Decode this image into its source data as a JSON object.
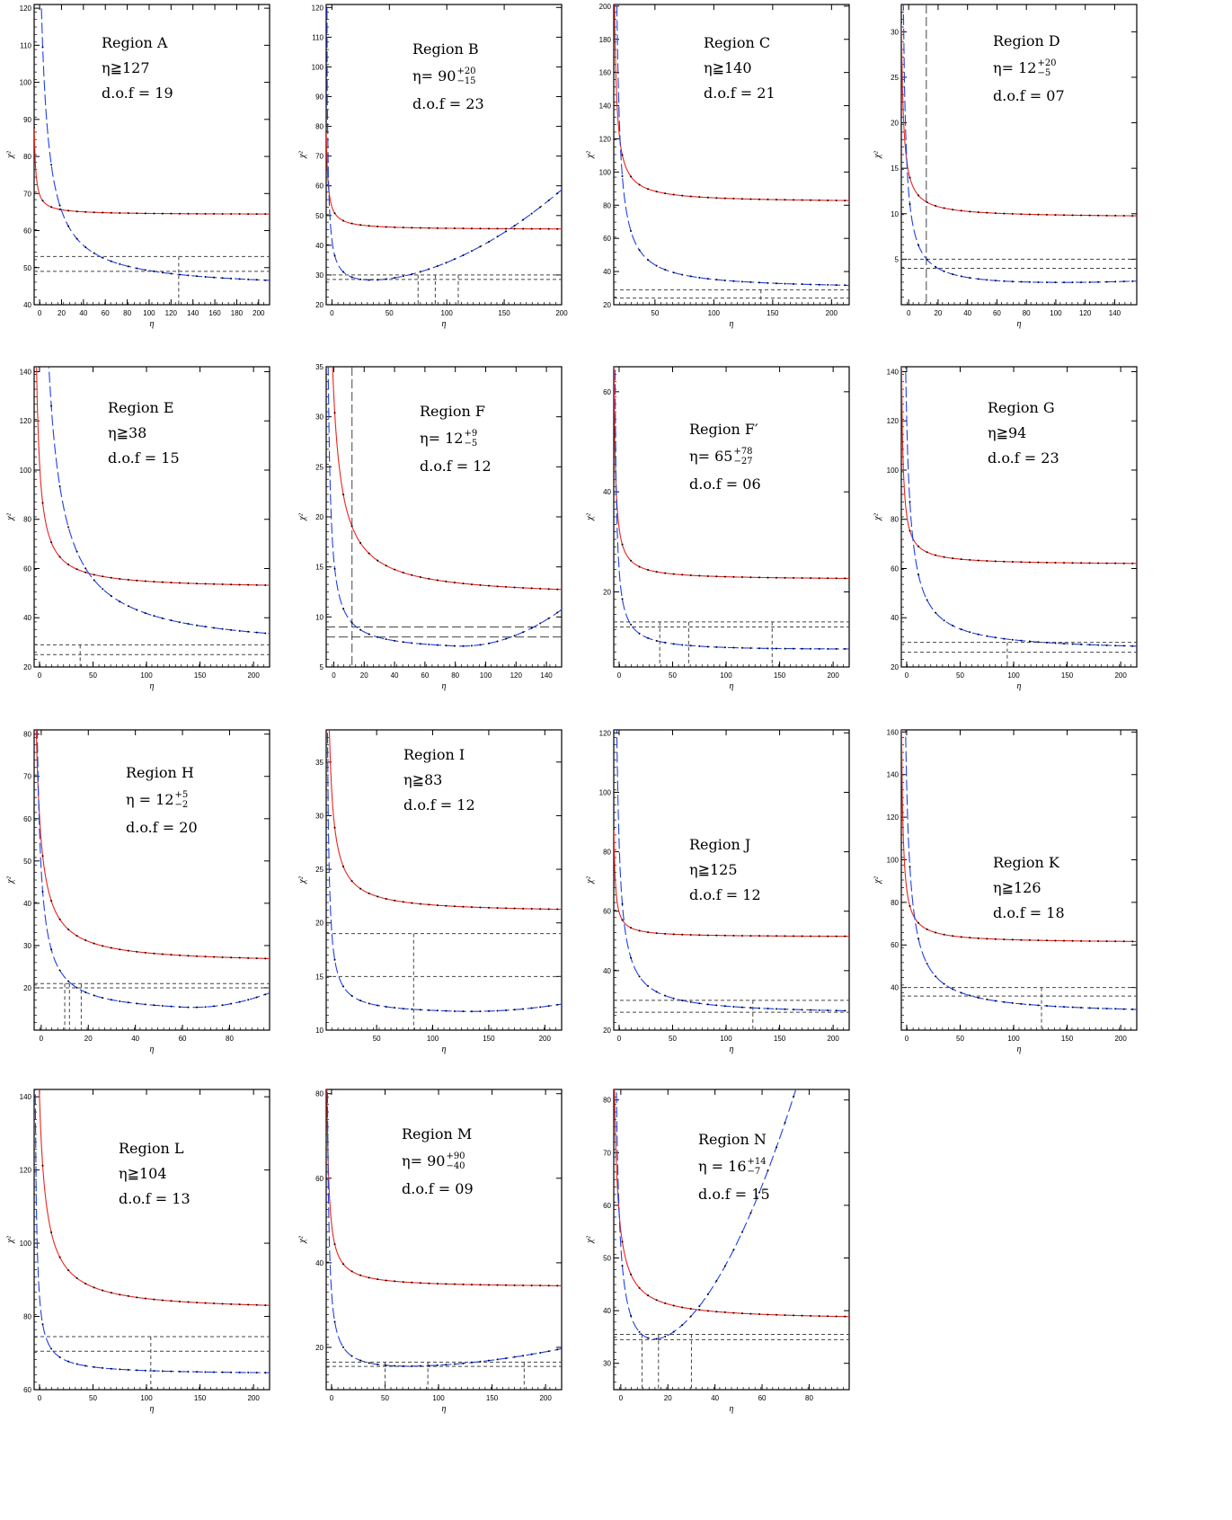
{
  "colors": {
    "red_curve": "#e8251f",
    "blue_curve": "#1f3fe8",
    "reference": "#444444",
    "axes": "#000000"
  },
  "axis_labels": {
    "x": "η",
    "y": "χ²"
  },
  "chart_data": [
    {
      "type": "line",
      "title": "Region A",
      "eta_text": "η≧127",
      "dof_text": "d.o.f  =  19",
      "xlim": [
        -5,
        210
      ],
      "ylim": [
        40,
        121
      ],
      "xticks": [
        0,
        20,
        40,
        60,
        80,
        100,
        120,
        140,
        160,
        180,
        200
      ],
      "yticks": [
        40,
        50,
        60,
        70,
        80,
        90,
        100,
        110,
        120
      ],
      "red": {
        "a": 21,
        "b": 11,
        "c": 0.62,
        "s": 0.7
      },
      "blue": {
        "a": 10,
        "b": 16,
        "c": 0.8,
        "s": 8.4
      },
      "hlines": [
        53,
        49
      ],
      "vlines": [
        127
      ]
    },
    {
      "type": "line",
      "title": "Region B",
      "eta_text": "η=  90",
      "eta_sup": "+20",
      "eta_sub": "−15",
      "dof_text": "d.o.f  =  23",
      "xlim": [
        -5,
        200
      ],
      "ylim": [
        20,
        121
      ],
      "xticks": [
        0,
        50,
        100,
        150,
        200
      ],
      "yticks": [
        20,
        30,
        40,
        50,
        60,
        70,
        80,
        90,
        100,
        110,
        120
      ],
      "red": {
        "a": 5,
        "b": 6,
        "c": 0.35,
        "s": 1.4
      },
      "blue": {
        "a": 5,
        "b": 3,
        "c": 0.9,
        "s": 1.0,
        "p": 22,
        "q": 0.00083,
        "x0": 0
      },
      "hlines": [
        30,
        28.5
      ],
      "vlines": [
        75,
        90,
        110
      ]
    },
    {
      "type": "line",
      "title": "Region C",
      "eta_text": "η≧140",
      "dof_text": "d.o.f  =  21",
      "xlim": [
        15,
        215
      ],
      "ylim": [
        20,
        201
      ],
      "xticks": [
        50,
        100,
        150,
        200
      ],
      "yticks": [
        20,
        40,
        60,
        80,
        100,
        120,
        140,
        160,
        180,
        200
      ],
      "red": {
        "a": 5,
        "b": 15,
        "c": 0.45,
        "s": 3.1
      },
      "blue": {
        "a": 5,
        "b": 18,
        "c": 1.05,
        "s": 2.8
      },
      "hlines": [
        29,
        24
      ],
      "vlines": [
        140
      ]
    },
    {
      "type": "line",
      "title": "Region D",
      "eta_text": "η=  12",
      "eta_sup": "+20",
      "eta_sub": "−5",
      "dof_text": "d.o.f  =  07",
      "xlim": [
        -5,
        155
      ],
      "ylim": [
        0,
        33
      ],
      "xticks": [
        0,
        20,
        40,
        60,
        80,
        100,
        120,
        140
      ],
      "yticks": [
        5,
        10,
        15,
        20,
        25,
        30
      ],
      "red": {
        "a": 5,
        "b": 10,
        "c": 0.65,
        "s": 1.5
      },
      "blue": {
        "a": 5,
        "b": 3,
        "c": 1.8,
        "s": 1.0,
        "p": 0,
        "q": 2.4e-05,
        "x0": 0
      },
      "hlines": [
        5,
        4
      ],
      "vlines": [
        12
      ],
      "vdash": "long"
    },
    {
      "type": "line",
      "title": "Region E",
      "eta_text": "η≧38",
      "dof_text": "d.o.f  =  15",
      "xlim": [
        -5,
        215
      ],
      "ylim": [
        20,
        142
      ],
      "xticks": [
        0,
        50,
        100,
        150,
        200
      ],
      "yticks": [
        20,
        40,
        60,
        80,
        100,
        120,
        140
      ],
      "red": {
        "a": 5,
        "b": 7,
        "c": 0.85,
        "s": 3.2
      },
      "blue": {
        "a": 5,
        "b": 5,
        "c": 2.6,
        "s": 5.2
      },
      "hlines": [
        29,
        25
      ],
      "vlines": [
        38
      ]
    },
    {
      "type": "line",
      "title": "Region F",
      "eta_text": "η=  12",
      "eta_sup": "+9",
      "eta_sub": "−5",
      "dof_text": "d.o.f  =  12",
      "xlim": [
        -5,
        150
      ],
      "ylim": [
        5,
        35
      ],
      "xticks": [
        0,
        20,
        40,
        60,
        80,
        100,
        120,
        140
      ],
      "yticks": [
        5,
        10,
        15,
        20,
        25,
        30,
        35
      ],
      "red": {
        "a": 5,
        "b": 4,
        "c": 1.0,
        "s": 4.4
      },
      "blue": {
        "a": 5,
        "b": 3,
        "c": 1.7,
        "s": 1.0,
        "p": -0.5,
        "q": 0.17,
        "x0": 80
      },
      "hlines": [
        9,
        8
      ],
      "vlines": [
        12
      ],
      "vdash": "long",
      "hdash": "long"
    },
    {
      "type": "line",
      "title": "Region F′",
      "eta_text": "η=  65",
      "eta_sup": "+78",
      "eta_sub": "−27",
      "dof_text": "d.o.f  =  06",
      "xlim": [
        -5,
        215
      ],
      "ylim": [
        5,
        65
      ],
      "xticks": [
        0,
        50,
        100,
        150,
        200
      ],
      "yticks": [
        20,
        40,
        60
      ],
      "red": {
        "a": 5,
        "b": 10,
        "c": 0.8,
        "s": 1.4
      },
      "blue": {
        "a": 5,
        "b": 3,
        "c": 1.5,
        "s": 1.0,
        "p": 0,
        "q": 4.5e-06,
        "x0": 0
      },
      "hlines": [
        14,
        13
      ],
      "vlines": [
        38,
        65,
        143
      ]
    },
    {
      "type": "line",
      "title": "Region G",
      "eta_text": "η≧94",
      "dof_text": "d.o.f  =  23",
      "xlim": [
        -5,
        215
      ],
      "ylim": [
        20,
        142
      ],
      "xticks": [
        0,
        50,
        100,
        150,
        200
      ],
      "yticks": [
        20,
        40,
        60,
        80,
        100,
        120,
        140
      ],
      "red": {
        "a": 5,
        "b": 15,
        "c": 0.45,
        "s": 2.4
      },
      "blue": {
        "a": 5,
        "b": 15,
        "c": 1.25,
        "s": 3.4
      },
      "hlines": [
        30,
        26
      ],
      "vlines": [
        94
      ]
    },
    {
      "type": "line",
      "title": "Region H",
      "eta_text": "η  =  12",
      "eta_sup": "+5",
      "eta_sub": "−2",
      "dof_text": "d.o.f  =  20",
      "xlim": [
        -3,
        97
      ],
      "ylim": [
        10,
        81
      ],
      "xticks": [
        0,
        20,
        40,
        60,
        80
      ],
      "yticks": [
        20,
        30,
        40,
        50,
        60,
        70,
        80
      ],
      "red": {
        "a": 5,
        "b": 3,
        "c": 1.0,
        "s": 1.85
      },
      "blue": {
        "a": 5,
        "b": 3,
        "c": 1.7,
        "s": 1.0,
        "p": -0.3,
        "q": 0.15,
        "x0": 60
      },
      "hlines": [
        21,
        20
      ],
      "vlines": [
        10,
        12,
        17
      ]
    },
    {
      "type": "line",
      "title": "Region I",
      "eta_text": "η≧83",
      "dof_text": "d.o.f  =  12",
      "xlim": [
        5,
        215
      ],
      "ylim": [
        10,
        38
      ],
      "xticks": [
        50,
        100,
        150,
        200
      ],
      "yticks": [
        10,
        15,
        20,
        25,
        30,
        35
      ],
      "red": {
        "a": 5,
        "b": 20,
        "c": 0.65,
        "s": 4.0
      },
      "blue": {
        "a": 5,
        "b": 3,
        "c": 1.5,
        "s": 1.0,
        "p": -0.5,
        "q": 0.047,
        "x0": 120
      },
      "hlines": [
        19,
        15
      ],
      "vlines": [
        83
      ]
    },
    {
      "type": "line",
      "title": "Region J",
      "eta_text": "η≧125",
      "dof_text": "d.o.f  =  12",
      "xlim": [
        -5,
        215
      ],
      "ylim": [
        20,
        121
      ],
      "xticks": [
        0,
        50,
        100,
        150,
        200
      ],
      "yticks": [
        20,
        40,
        60,
        80,
        100,
        120
      ],
      "red": {
        "a": 5,
        "b": 12,
        "c": 0.45,
        "s": 1.2
      },
      "blue": {
        "a": 5,
        "b": 15,
        "c": 0.85,
        "s": 3.7
      },
      "hlines": [
        30,
        26
      ],
      "vlines": [
        125
      ]
    },
    {
      "type": "line",
      "title": "Region K",
      "eta_text": "η≧126",
      "dof_text": "d.o.f  =  18",
      "xlim": [
        -5,
        215
      ],
      "ylim": [
        20,
        161
      ],
      "xticks": [
        0,
        50,
        100,
        150,
        200
      ],
      "yticks": [
        40,
        60,
        80,
        100,
        120,
        140,
        160
      ],
      "red": {
        "a": 5,
        "b": 10,
        "c": 0.45,
        "s": 2.6
      },
      "blue": {
        "a": 5,
        "b": 12,
        "c": 1.0,
        "s": 4.2
      },
      "hlines": [
        40,
        36
      ],
      "vlines": [
        126
      ]
    },
    {
      "type": "line",
      "title": "Region L",
      "eta_text": "η≧104",
      "dof_text": "d.o.f  =  13",
      "xlim": [
        -5,
        215
      ],
      "ylim": [
        60,
        142
      ],
      "xticks": [
        0,
        50,
        100,
        150,
        200
      ],
      "yticks": [
        60,
        80,
        100,
        120,
        140
      ],
      "red": {
        "a": 5,
        "b": 7,
        "c": 1.4,
        "s": 3.3
      },
      "blue": {
        "a": 5,
        "b": 7,
        "c": 0.75,
        "s": 1.9
      },
      "hlines": [
        74.5,
        70.5
      ],
      "vlines": [
        104
      ]
    },
    {
      "type": "line",
      "title": "Region M",
      "eta_text": "η=  90",
      "eta_sup": "+90",
      "eta_sub": "−40",
      "dof_text": "d.o.f  =  09",
      "xlim": [
        -5,
        215
      ],
      "ylim": [
        10,
        81
      ],
      "xticks": [
        0,
        50,
        100,
        150,
        200
      ],
      "yticks": [
        20,
        40,
        60,
        80
      ],
      "red": {
        "a": 5,
        "b": 15,
        "c": 0.55,
        "s": 2.5
      },
      "blue": {
        "a": 5,
        "b": 3,
        "c": 1.5,
        "s": 1.0,
        "p": 0,
        "q": 0.000122,
        "x0": 0
      },
      "hlines": [
        16.5,
        15.5
      ],
      "vlines": [
        50,
        90,
        180
      ]
    },
    {
      "type": "line",
      "title": "Region N",
      "eta_text": "η  =  16",
      "eta_sup": "+14",
      "eta_sub": "−7",
      "dof_text": "d.o.f  =  15",
      "xlim": [
        -3,
        97
      ],
      "ylim": [
        25,
        82
      ],
      "xticks": [
        0,
        20,
        40,
        60,
        80
      ],
      "yticks": [
        30,
        40,
        50,
        60,
        70,
        80
      ],
      "red": {
        "a": 5,
        "b": 4,
        "c": 0.9,
        "s": 1.5
      },
      "blue": {
        "a": 5,
        "b": 3,
        "c": 1.5,
        "s": 1.0,
        "p": 0,
        "q": 0.0096,
        "x0": 0
      },
      "hlines": [
        35.5,
        34.5
      ],
      "vlines": [
        9,
        16,
        30
      ]
    }
  ]
}
